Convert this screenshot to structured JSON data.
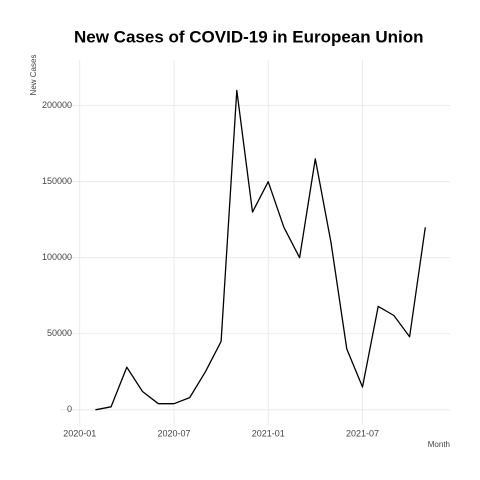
{
  "chart_data": {
    "type": "line",
    "title": "New Cases of COVID-19 in European Union",
    "x_label": "Month",
    "y_label": "New Cases",
    "x": [
      "2020-02",
      "2020-03",
      "2020-04",
      "2020-05",
      "2020-06",
      "2020-07",
      "2020-08",
      "2020-09",
      "2020-10",
      "2020-11",
      "2020-12",
      "2021-01",
      "2021-02",
      "2021-03",
      "2021-04",
      "2021-05",
      "2021-06",
      "2021-07",
      "2021-08",
      "2021-09",
      "2021-10",
      "2021-11"
    ],
    "series": [
      {
        "name": "New Cases",
        "color": "#000000",
        "values": [
          0,
          2000,
          28000,
          12000,
          4000,
          4000,
          8000,
          25000,
          45000,
          210000,
          130000,
          150000,
          120000,
          100000,
          165000,
          110000,
          40000,
          15000,
          68000,
          62000,
          48000,
          120000
        ]
      }
    ],
    "xlim": [
      "2019-12",
      "2021-12"
    ],
    "xticks": [
      "2020-01",
      "2020-07",
      "2021-01",
      "2021-07"
    ],
    "ylim": [
      -10000,
      230000
    ],
    "yticks": [
      0,
      50000,
      100000,
      150000,
      200000
    ],
    "grid": true
  }
}
